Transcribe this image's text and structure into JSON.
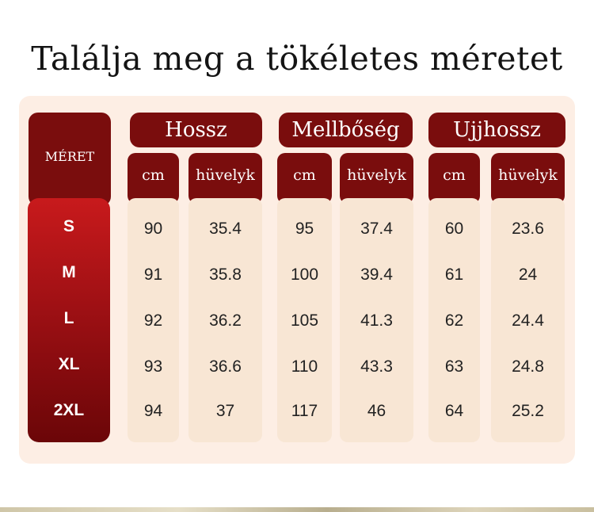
{
  "title": "Találja meg a tökéletes méretet",
  "size_header": "MÉRET",
  "groups": [
    {
      "label": "Hossz"
    },
    {
      "label": "Mellbőség"
    },
    {
      "label": "Ujjhossz"
    }
  ],
  "units": {
    "cm": "cm",
    "inch": "hüvelyk"
  },
  "rows": [
    {
      "size": "S",
      "hossz_cm": "90",
      "hossz_in": "35.4",
      "mell_cm": "95",
      "mell_in": "37.4",
      "ujj_cm": "60",
      "ujj_in": "23.6"
    },
    {
      "size": "M",
      "hossz_cm": "91",
      "hossz_in": "35.8",
      "mell_cm": "100",
      "mell_in": "39.4",
      "ujj_cm": "61",
      "ujj_in": "24"
    },
    {
      "size": "L",
      "hossz_cm": "92",
      "hossz_in": "36.2",
      "mell_cm": "105",
      "mell_in": "41.3",
      "ujj_cm": "62",
      "ujj_in": "24.4"
    },
    {
      "size": "XL",
      "hossz_cm": "93",
      "hossz_in": "36.6",
      "mell_cm": "110",
      "mell_in": "43.3",
      "ujj_cm": "63",
      "ujj_in": "24.8"
    },
    {
      "size": "2XL",
      "hossz_cm": "94",
      "hossz_in": "37",
      "mell_cm": "117",
      "mell_in": "46",
      "ujj_cm": "64",
      "ujj_in": "25.2"
    }
  ],
  "colors": {
    "header": "#7a0d0d",
    "size_gradient_top": "#c81a1c",
    "size_gradient_bottom": "#6b0608",
    "panel": "#fdeee4",
    "column": "#f8e6d4"
  }
}
